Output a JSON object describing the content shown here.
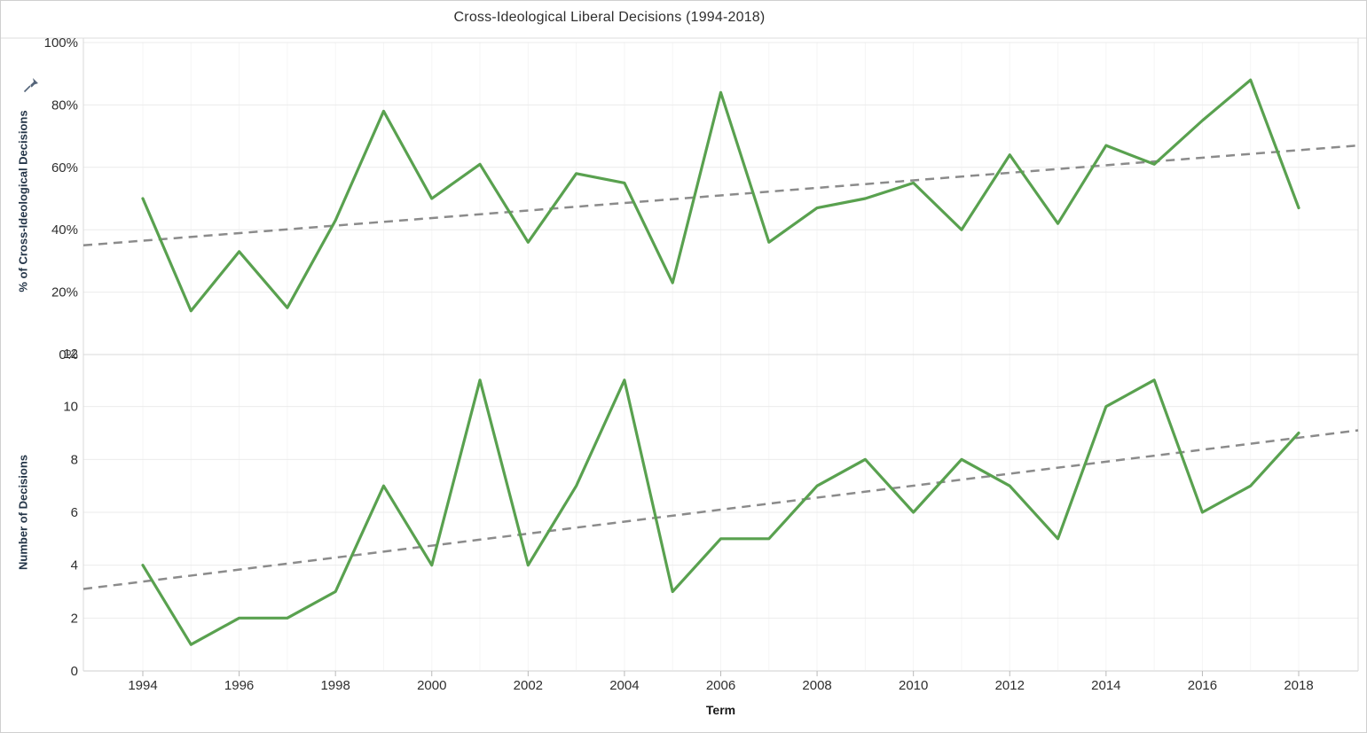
{
  "window": {
    "title": "Cross-Ideological Liberal Decisions (1994-2018)"
  },
  "icons": {
    "pinned_axis": "pushpin-icon"
  },
  "chart_data": {
    "type": "line",
    "title": "Cross-Ideological Liberal Decisions (1994-2018)",
    "xlabel": "Term",
    "grid": true,
    "legend_position": "none",
    "x": [
      1994,
      1995,
      1996,
      1997,
      1998,
      1999,
      2000,
      2001,
      2002,
      2003,
      2004,
      2005,
      2006,
      2007,
      2008,
      2009,
      2010,
      2011,
      2012,
      2013,
      2014,
      2015,
      2016,
      2017,
      2018
    ],
    "x_ticks": [
      1994,
      1996,
      1998,
      2000,
      2002,
      2004,
      2006,
      2008,
      2010,
      2012,
      2014,
      2016,
      2018
    ],
    "line_color": "#59a14f",
    "trend_color": "#8b8b8b",
    "panels": [
      {
        "name": "percent-panel",
        "ylabel": "% of Cross-Ideological Decisions",
        "ylim": [
          0,
          100
        ],
        "y_ticks": [
          0,
          20,
          40,
          60,
          80,
          100
        ],
        "y_tick_suffix": "%",
        "pinned_axis": true,
        "series": [
          {
            "name": "% of Cross-Ideological Decisions",
            "type": "line",
            "color": "#59a14f",
            "values": [
              50,
              14,
              33,
              15,
              43,
              78,
              50,
              61,
              36,
              58,
              55,
              23,
              84,
              36,
              47,
              50,
              55,
              40,
              64,
              42,
              67,
              61,
              75,
              88,
              47
            ]
          },
          {
            "name": "Trend line",
            "type": "trend-dashed",
            "color": "#8b8b8b",
            "start": 35,
            "end": 67
          }
        ]
      },
      {
        "name": "count-panel",
        "ylabel": "Number of Decisions",
        "ylim": [
          0,
          12
        ],
        "y_ticks": [
          0,
          2,
          4,
          6,
          8,
          10,
          12
        ],
        "y_tick_suffix": "",
        "pinned_axis": false,
        "series": [
          {
            "name": "Number of Decisions",
            "type": "line",
            "color": "#59a14f",
            "values": [
              4,
              1,
              2,
              2,
              3,
              7,
              4,
              11,
              4,
              7,
              11,
              3,
              5,
              5,
              7,
              8,
              6,
              8,
              7,
              5,
              10,
              11,
              6,
              7,
              9
            ]
          },
          {
            "name": "Trend line",
            "type": "trend-dashed",
            "color": "#8b8b8b",
            "start": 3.1,
            "end": 9.1
          }
        ]
      }
    ]
  }
}
